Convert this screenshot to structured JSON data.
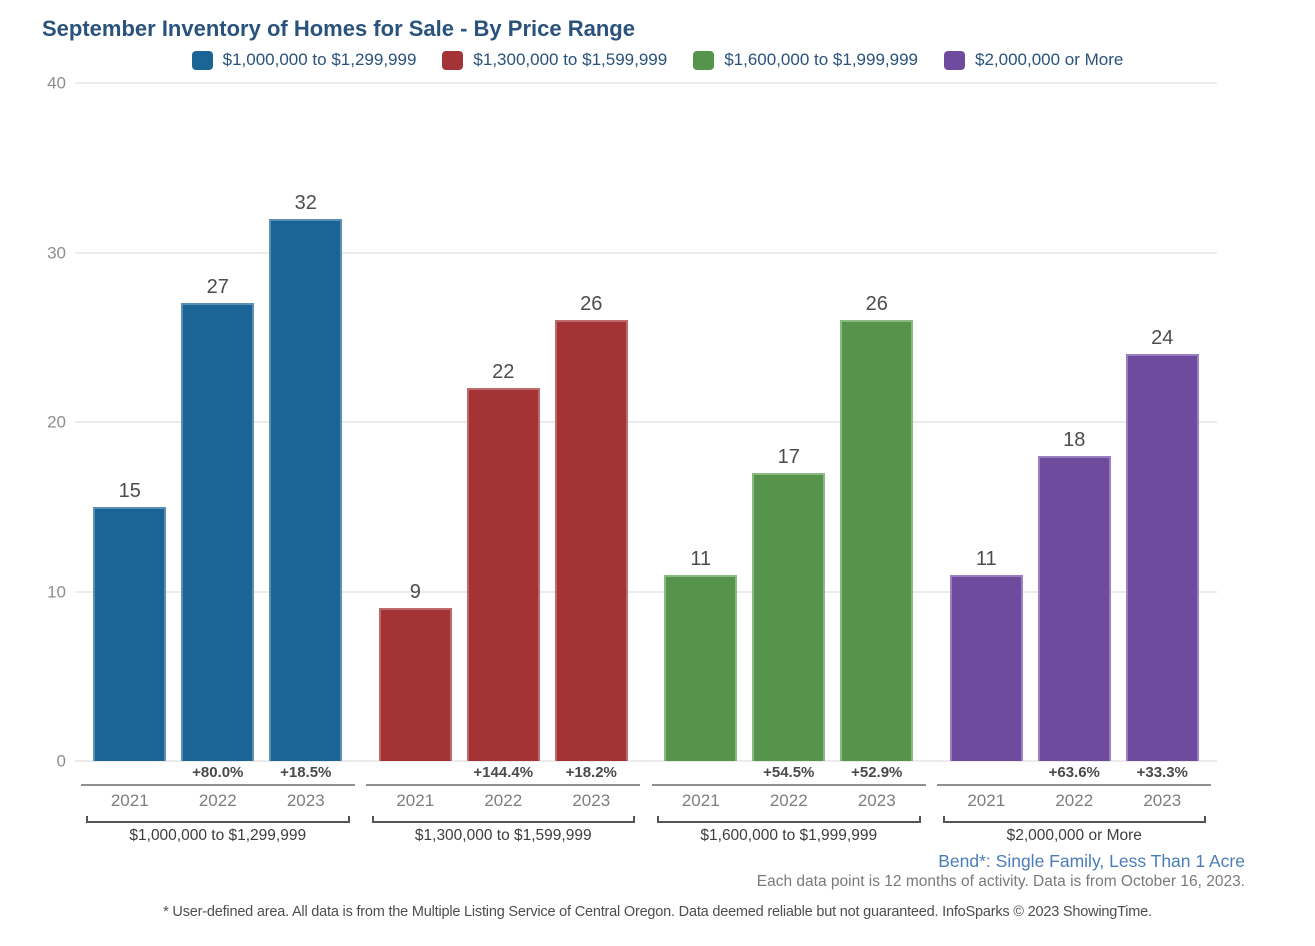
{
  "title": "September Inventory of Homes for Sale - By Price Range",
  "legend": [
    {
      "label": "$1,000,000 to $1,299,999",
      "color": "#1a6496"
    },
    {
      "label": "$1,300,000 to $1,599,999",
      "color": "#a33334"
    },
    {
      "label": "$1,600,000 to $1,999,999",
      "color": "#55944a"
    },
    {
      "label": "$2,000,000 or More",
      "color": "#6f4b9e"
    }
  ],
  "chart_data": {
    "type": "bar",
    "title": "September Inventory of Homes for Sale - By Price Range",
    "xlabel": "",
    "ylabel": "",
    "ylim": [
      0,
      40
    ],
    "yticks": [
      0,
      10,
      20,
      30,
      40
    ],
    "grid": true,
    "legend_position": "top",
    "categories": [
      "2021",
      "2022",
      "2023"
    ],
    "groups": [
      {
        "name": "$1,000,000 to $1,299,999",
        "color": "#1a6496",
        "border_color": "#5b8fb3",
        "values": [
          15,
          27,
          32
        ],
        "pct_change": [
          "",
          "+80.0%",
          "+18.5%"
        ]
      },
      {
        "name": "$1,300,000 to $1,599,999",
        "color": "#a33334",
        "border_color": "#bd6a6a",
        "values": [
          9,
          22,
          26
        ],
        "pct_change": [
          "",
          "+144.4%",
          "+18.2%"
        ]
      },
      {
        "name": "$1,600,000 to $1,999,999",
        "color": "#55944a",
        "border_color": "#8cb884",
        "values": [
          11,
          17,
          26
        ],
        "pct_change": [
          "",
          "+54.5%",
          "+52.9%"
        ]
      },
      {
        "name": "$2,000,000 or More",
        "color": "#6f4b9e",
        "border_color": "#9a7fc0",
        "values": [
          11,
          18,
          24
        ],
        "pct_change": [
          "",
          "+63.6%",
          "+33.3%"
        ]
      }
    ]
  },
  "footer": {
    "area_note": "Bend*: Single Family, Less Than 1 Acre",
    "data_note": "Each data point is 12 months of activity. Data is from October 16, 2023.",
    "disclaimer": "* User-defined area. All data is from the Multiple Listing Service of Central Oregon. Data deemed reliable but not guaranteed. InfoSparks © 2023 ShowingTime."
  }
}
